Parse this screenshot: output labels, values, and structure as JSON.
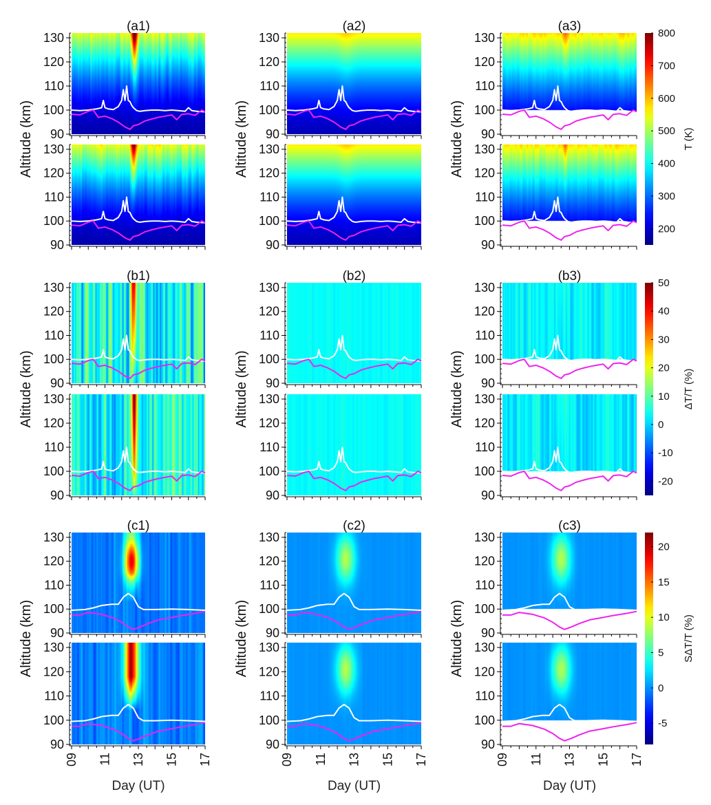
{
  "chart_data": {
    "type": "heatmap",
    "layout": "3 rows x 3 columns, each cell has two stacked panels sharing x axis",
    "x_axis": {
      "label": "Day (UT)",
      "range": [
        9,
        17
      ],
      "tick_values": [
        9,
        11,
        13,
        15,
        17
      ],
      "tick_labels": [
        "09",
        "11",
        "13",
        "15",
        "17"
      ],
      "minor_step": 0.5
    },
    "y_axis": {
      "label": "Altitude (km)",
      "range": [
        90,
        132
      ],
      "tick_values": [
        90,
        100,
        110,
        120,
        130
      ],
      "tick_labels": [
        "90",
        "100",
        "110",
        "120",
        "130"
      ],
      "minor_step": 2
    },
    "rows": [
      {
        "id": "a",
        "titles": [
          "(a1)",
          "(a2)",
          "(a3)"
        ],
        "colorbar": {
          "label": "T (K)",
          "range": [
            150,
            800
          ],
          "ticks": [
            200,
            300,
            400,
            500,
            600,
            700,
            800
          ],
          "tick_labels": [
            "200",
            "300",
            "400",
            "500",
            "600",
            "700",
            "800"
          ],
          "colormap": "jet"
        },
        "variable": "T"
      },
      {
        "id": "b",
        "titles": [
          "(b1)",
          "(b2)",
          "(b3)"
        ],
        "colorbar": {
          "label": "ΔT/T (%)",
          "range": [
            -25,
            50
          ],
          "ticks": [
            -20,
            -10,
            0,
            10,
            20,
            30,
            40,
            50
          ],
          "tick_labels": [
            "-20",
            "-10",
            "0",
            "10",
            "20",
            "30",
            "40",
            "50"
          ],
          "colormap": "jet"
        },
        "variable": "dT/T"
      },
      {
        "id": "c",
        "titles": [
          "(c1)",
          "(c2)",
          "(c3)"
        ],
        "colorbar": {
          "label": "SΔT/T (%)",
          "range": [
            -8,
            22
          ],
          "ticks": [
            -5,
            0,
            5,
            10,
            15,
            20
          ],
          "tick_labels": [
            "-5",
            "0",
            "5",
            "10",
            "15",
            "20"
          ],
          "colormap": "jet"
        },
        "variable": "SdT/T"
      }
    ],
    "overlay_lines": [
      {
        "name": "upper boundary (white)",
        "color": "#ffffff",
        "x": [
          9.0,
          9.5,
          10.0,
          10.5,
          10.8,
          10.9,
          11.0,
          11.2,
          11.5,
          11.8,
          12.0,
          12.1,
          12.2,
          12.3,
          12.4,
          12.5,
          12.6,
          12.7,
          12.9,
          13.1,
          13.4,
          13.8,
          14.2,
          14.6,
          15.0,
          15.4,
          15.8,
          16.0,
          16.2,
          16.5,
          17.0
        ],
        "y": [
          100,
          99.8,
          100,
          100.5,
          101,
          104,
          101,
          100.5,
          100.2,
          101.5,
          104,
          108.5,
          104,
          110,
          104,
          103.5,
          102,
          101,
          99.8,
          99.5,
          99.8,
          100,
          100,
          99.8,
          100,
          99.8,
          99.5,
          101,
          99.8,
          99.5,
          99.3
        ]
      },
      {
        "name": "lower boundary (magenta)",
        "color": "#ff33ff",
        "x": [
          9.0,
          9.5,
          10.0,
          10.3,
          10.6,
          11.0,
          11.4,
          11.8,
          12.2,
          12.5,
          12.7,
          13.0,
          13.4,
          13.8,
          14.2,
          14.6,
          15.0,
          15.3,
          15.6,
          16.0,
          16.4,
          16.8,
          17.0
        ],
        "y": [
          98.3,
          98,
          99.5,
          100,
          97,
          97.5,
          96.5,
          95,
          93,
          92,
          93.5,
          94,
          95.5,
          96.3,
          97,
          97.5,
          98,
          96,
          98.2,
          98.5,
          97.8,
          100,
          99.3
        ]
      },
      {
        "name": "upper boundary smoothed (white, row c)",
        "color": "#ffffff",
        "x": [
          9.0,
          9.8,
          10.3,
          10.8,
          11.4,
          11.8,
          12.1,
          12.4,
          12.7,
          13.0,
          13.3,
          14.0,
          15.0,
          16.0,
          17.0
        ],
        "y": [
          99.5,
          99.8,
          100.5,
          101.5,
          102,
          102,
          105,
          106.5,
          105,
          101,
          99.8,
          99.8,
          100,
          99.8,
          99.5
        ]
      },
      {
        "name": "lower boundary smoothed (magenta, row c)",
        "color": "#ff33ff",
        "x": [
          9.0,
          9.5,
          10.0,
          10.8,
          11.5,
          12.0,
          12.4,
          12.7,
          13.1,
          13.6,
          14.2,
          15.0,
          15.6,
          16.4,
          17.0
        ],
        "y": [
          97.5,
          97.5,
          98.6,
          97.8,
          96.3,
          94.5,
          92.5,
          91.5,
          92.5,
          94,
          95.5,
          96.5,
          97.3,
          98.2,
          99
        ]
      }
    ],
    "panels_mask_below_upper_boundary": [
      "a3",
      "b3",
      "c3"
    ]
  }
}
